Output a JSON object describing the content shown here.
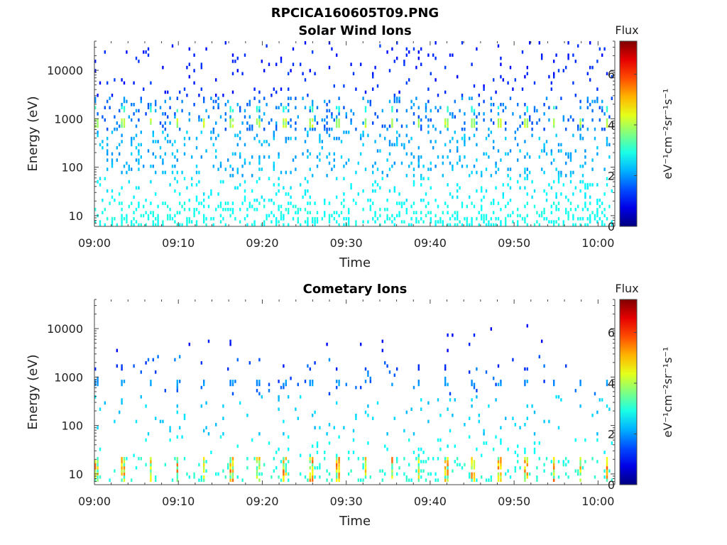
{
  "figure_title": "RPCICA160605T09.PNG",
  "chart_data": [
    {
      "type": "heatmap",
      "title": "Solar Wind Ions",
      "xlabel": "Time",
      "ylabel": "Energy (eV)",
      "x_ticks": [
        "09:00",
        "09:10",
        "09:20",
        "09:30",
        "09:40",
        "09:50",
        "10:00"
      ],
      "xlim": [
        "09:00",
        "10:02"
      ],
      "y_scale": "log",
      "y_ticks": [
        10,
        100,
        1000,
        10000
      ],
      "ylim": [
        6,
        40000
      ],
      "colorbar": {
        "label": "Flux",
        "units": "eV⁻¹cm⁻²sr⁻¹s⁻¹",
        "range": [
          0,
          7.3
        ],
        "ticks": [
          0,
          2,
          4,
          6
        ],
        "colormap": "jet"
      },
      "features": [
        {
          "energy_ev": 800,
          "flux": 4.0,
          "period_min": 3.2,
          "description": "periodic solar wind peak"
        },
        {
          "energy_ev": 1600,
          "flux": 3.0,
          "period_min": 3.2
        },
        {
          "energy_range_ev": [
            6,
            20
          ],
          "flux": 2.8
        },
        {
          "energy_range_ev": [
            20,
            60
          ],
          "flux": 2.6
        },
        {
          "energy_range_ev": [
            60,
            600
          ],
          "flux": 2.2
        },
        {
          "energy_range_ev": [
            1000,
            40000
          ],
          "flux": 1.0
        }
      ]
    },
    {
      "type": "heatmap",
      "title": "Cometary Ions",
      "xlabel": "Time",
      "ylabel": "Energy (eV)",
      "x_ticks": [
        "09:00",
        "09:10",
        "09:20",
        "09:30",
        "09:40",
        "09:50",
        "10:00"
      ],
      "xlim": [
        "09:00",
        "10:02"
      ],
      "y_scale": "log",
      "y_ticks": [
        10,
        100,
        1000,
        10000
      ],
      "ylim": [
        6,
        40000
      ],
      "colorbar": {
        "label": "Flux",
        "units": "eV⁻¹cm⁻²sr⁻¹s⁻¹",
        "range": [
          0,
          7.3
        ],
        "ticks": [
          0,
          2,
          4,
          6
        ],
        "colormap": "jet"
      },
      "features": [
        {
          "energy_range_ev": [
            7,
            20
          ],
          "flux_range": [
            3.0,
            6.0
          ],
          "period_min": 3.2,
          "description": "periodic low-energy cometary ion bursts"
        },
        {
          "energy_ev": 750,
          "flux": 2.0,
          "period_min": 3.2
        },
        {
          "energy_range_ev": [
            20,
            300
          ],
          "flux": 2.4
        },
        {
          "energy_range_ev": [
            1000,
            10000
          ],
          "flux": 0.8
        }
      ]
    }
  ]
}
